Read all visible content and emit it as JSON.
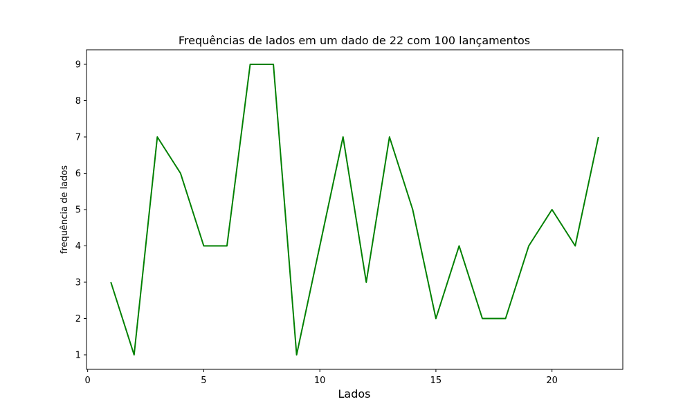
{
  "chart_data": {
    "type": "line",
    "title": "Frequências de lados em um dado de 22 com 100 lançamentos",
    "xlabel": "Lados",
    "ylabel": "frequência de lados",
    "x": [
      1,
      2,
      3,
      4,
      5,
      6,
      7,
      8,
      9,
      10,
      11,
      12,
      13,
      14,
      15,
      16,
      17,
      18,
      19,
      20,
      21,
      22
    ],
    "series": [
      {
        "name": "frequência",
        "values": [
          3,
          1,
          7,
          6,
          4,
          4,
          9,
          9,
          1,
          4,
          7,
          3,
          7,
          5,
          2,
          4,
          2,
          2,
          4,
          5,
          4,
          7
        ]
      }
    ],
    "xlim": [
      -0.05,
      23.05
    ],
    "ylim": [
      0.6,
      9.4
    ],
    "xticks": [
      0,
      5,
      10,
      15,
      20
    ],
    "yticks": [
      1,
      2,
      3,
      4,
      5,
      6,
      7,
      8,
      9
    ],
    "grid": false,
    "line_color": "#008000"
  }
}
